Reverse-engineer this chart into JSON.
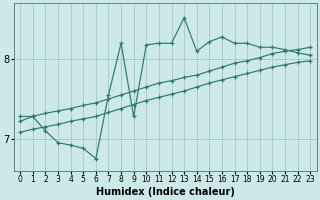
{
  "xlabel": "Humidex (Indice chaleur)",
  "bg_color": "#cce8e8",
  "grid_color": "#aacccc",
  "line_color": "#2d7a6a",
  "xlim": [
    -0.5,
    23.5
  ],
  "ylim": [
    6.6,
    8.7
  ],
  "xticks": [
    0,
    1,
    2,
    3,
    4,
    5,
    6,
    7,
    8,
    9,
    10,
    11,
    12,
    13,
    14,
    15,
    16,
    17,
    18,
    19,
    20,
    21,
    22,
    23
  ],
  "yticks": [
    7,
    8
  ],
  "line_zigzag_x": [
    0,
    1,
    2,
    3,
    4,
    5,
    6,
    7,
    8,
    9,
    10,
    11,
    12,
    13,
    14,
    15,
    16,
    17,
    18,
    19,
    20,
    21,
    22,
    23
  ],
  "line_zigzag_y": [
    7.28,
    7.28,
    7.1,
    6.95,
    6.92,
    6.88,
    6.75,
    7.55,
    8.2,
    7.28,
    8.18,
    8.2,
    8.2,
    8.52,
    8.1,
    8.22,
    8.28,
    8.2,
    8.2,
    8.15,
    8.15,
    8.12,
    8.08,
    8.05
  ],
  "line_upper_x": [
    0,
    1,
    2,
    3,
    4,
    5,
    6,
    7,
    8,
    9,
    10,
    11,
    12,
    13,
    14,
    15,
    16,
    17,
    18,
    19,
    20,
    21,
    22,
    23
  ],
  "line_upper_y": [
    7.22,
    7.28,
    7.32,
    7.35,
    7.38,
    7.42,
    7.45,
    7.5,
    7.55,
    7.6,
    7.65,
    7.7,
    7.73,
    7.77,
    7.8,
    7.85,
    7.9,
    7.95,
    7.98,
    8.02,
    8.07,
    8.1,
    8.12,
    8.15
  ],
  "line_lower_x": [
    0,
    1,
    2,
    3,
    4,
    5,
    6,
    7,
    8,
    9,
    10,
    11,
    12,
    13,
    14,
    15,
    16,
    17,
    18,
    19,
    20,
    21,
    22,
    23
  ],
  "line_lower_y": [
    7.08,
    7.12,
    7.15,
    7.18,
    7.22,
    7.25,
    7.28,
    7.33,
    7.38,
    7.43,
    7.48,
    7.52,
    7.56,
    7.6,
    7.65,
    7.7,
    7.74,
    7.78,
    7.82,
    7.86,
    7.9,
    7.93,
    7.96,
    7.98
  ]
}
